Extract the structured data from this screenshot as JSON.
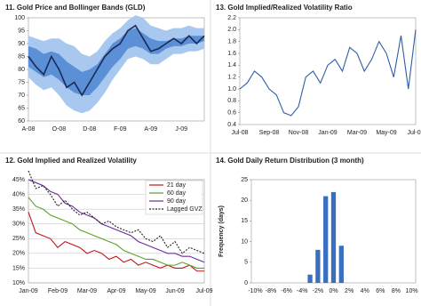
{
  "chart_data": [
    {
      "type": "line",
      "title": "11. Gold Price and Bollinger Bands (GLD)",
      "categories": [
        "A-08",
        null,
        null,
        null,
        "O-08",
        null,
        null,
        null,
        "D-08",
        null,
        null,
        null,
        "F-09",
        null,
        null,
        null,
        "A-09",
        null,
        null,
        null,
        "J-09",
        null,
        null,
        null
      ],
      "values": [
        85,
        81,
        78,
        85,
        80,
        73,
        75,
        70,
        75,
        80,
        85,
        88,
        90,
        95,
        97,
        92,
        87,
        88,
        90,
        92,
        90,
        93,
        90,
        93
      ],
      "color": "#1b2a55",
      "bands": [
        {
          "color": "#a9c8ef",
          "upper": [
            93,
            92,
            91,
            92,
            92,
            90,
            89,
            86,
            85,
            87,
            91,
            94,
            96,
            99,
            101,
            100,
            97,
            96,
            95,
            96,
            96,
            97,
            96,
            96
          ],
          "lower": [
            77,
            74,
            72,
            73,
            70,
            66,
            64,
            63,
            64,
            67,
            71,
            76,
            80,
            84,
            85,
            84,
            82,
            82,
            84,
            86,
            86,
            87,
            87,
            88
          ]
        },
        {
          "color": "#5b8fd6",
          "upper": [
            89,
            88,
            86,
            87,
            86,
            83,
            81,
            79,
            80,
            82,
            86,
            90,
            92,
            95,
            96,
            94,
            92,
            91,
            91,
            92,
            92,
            93,
            93,
            93
          ],
          "lower": [
            81,
            79,
            77,
            78,
            76,
            73,
            71,
            70,
            70,
            73,
            77,
            81,
            84,
            88,
            89,
            88,
            86,
            86,
            88,
            89,
            89,
            90,
            90,
            91
          ]
        }
      ],
      "ylim": [
        60,
        100
      ],
      "yticks": [
        60,
        65,
        70,
        75,
        80,
        85,
        90,
        95,
        100
      ],
      "grid": false
    },
    {
      "type": "line",
      "title": "13. Gold Implied/Realized Volatility Ratio",
      "categories": [
        "Jul-08",
        null,
        null,
        null,
        "Sep-08",
        null,
        null,
        null,
        "Nov-08",
        null,
        null,
        null,
        "Jan-09",
        null,
        null,
        null,
        "Mar-09",
        null,
        null,
        null,
        "May-09",
        null,
        null,
        null,
        "Jul-09"
      ],
      "values": [
        1.0,
        1.1,
        1.3,
        1.2,
        1.0,
        0.9,
        0.6,
        0.55,
        0.7,
        1.2,
        1.3,
        1.1,
        1.4,
        1.5,
        1.3,
        1.7,
        1.6,
        1.3,
        1.5,
        1.8,
        1.6,
        1.2,
        1.9,
        1.0,
        2.0
      ],
      "color": "#2e5fa3",
      "ylim": [
        0.4,
        2.2
      ],
      "yticks": [
        0.4,
        0.6,
        0.8,
        {
          "value": 1.0,
          "label": "1.0"
        },
        1.2,
        1.4,
        1.6,
        1.8,
        {
          "value": 2.0,
          "label": "2.0"
        },
        2.2
      ],
      "grid": false
    },
    {
      "type": "line",
      "title": "12. Gold Implied and Realized Volatility",
      "categories": [
        "Jan-09",
        null,
        null,
        null,
        "Feb-09",
        null,
        null,
        null,
        "Mar-09",
        null,
        null,
        null,
        "Apr-09",
        null,
        null,
        null,
        "May-09",
        null,
        null,
        null,
        "Jun-09",
        null,
        null,
        null,
        "Jul-09"
      ],
      "series": [
        {
          "name": "21 day",
          "color": "#c0141b",
          "values": [
            34,
            27,
            26,
            25,
            22,
            24,
            23,
            22,
            20,
            21,
            20,
            18,
            19,
            17,
            18,
            16,
            17,
            16,
            15,
            16,
            15,
            15,
            16,
            14,
            14
          ]
        },
        {
          "name": "60 day",
          "color": "#5aa02c",
          "values": [
            39,
            36,
            35,
            33,
            32,
            31,
            30,
            28,
            27,
            26,
            25,
            24,
            23,
            21,
            20,
            19,
            18,
            18,
            17,
            16,
            16,
            17,
            16,
            15,
            15
          ]
        },
        {
          "name": "90 day",
          "color": "#6a2c9c",
          "values": [
            45,
            44,
            43,
            41,
            40,
            37,
            36,
            34,
            33,
            32,
            30,
            29,
            28,
            27,
            26,
            24,
            23,
            22,
            21,
            20,
            20,
            19,
            19,
            18,
            17
          ]
        },
        {
          "name": "Lagged GVZ",
          "color": "#222222",
          "dashed": true,
          "values": [
            48,
            42,
            43,
            40,
            36,
            38,
            35,
            33,
            34,
            32,
            30,
            31,
            29,
            28,
            27,
            28,
            25,
            24,
            26,
            22,
            24,
            20,
            22,
            21,
            20
          ]
        }
      ],
      "ylim": [
        10,
        45
      ],
      "yticks": [
        {
          "value": 10,
          "label": "10%"
        },
        {
          "value": 15,
          "label": "15%"
        },
        {
          "value": 20,
          "label": "20%"
        },
        {
          "value": 25,
          "label": "25%"
        },
        {
          "value": 30,
          "label": "30%"
        },
        {
          "value": 35,
          "label": "35%"
        },
        {
          "value": 40,
          "label": "40%"
        },
        {
          "value": 45,
          "label": "45%"
        }
      ],
      "grid": true,
      "legend": "top-right"
    },
    {
      "type": "bar",
      "title": "14. Gold Daily Return Distribution (3 month)",
      "ylabel": "Frequency (days)",
      "categories": [
        "-10%",
        null,
        "-8%",
        null,
        "-6%",
        null,
        "-4%",
        null,
        "-2%",
        null,
        "0%",
        null,
        "2%",
        null,
        "4%",
        null,
        "6%",
        null,
        "8%",
        null,
        "10%"
      ],
      "values": [
        0,
        0,
        0,
        0,
        0,
        0,
        0,
        2,
        8,
        21,
        22,
        9,
        0,
        0,
        0,
        0,
        0,
        0,
        0,
        0,
        0
      ],
      "color": "#3a6fc0",
      "ylim": [
        0,
        25
      ],
      "yticks": [
        0,
        5,
        10,
        15,
        20,
        25
      ],
      "grid": false
    }
  ]
}
